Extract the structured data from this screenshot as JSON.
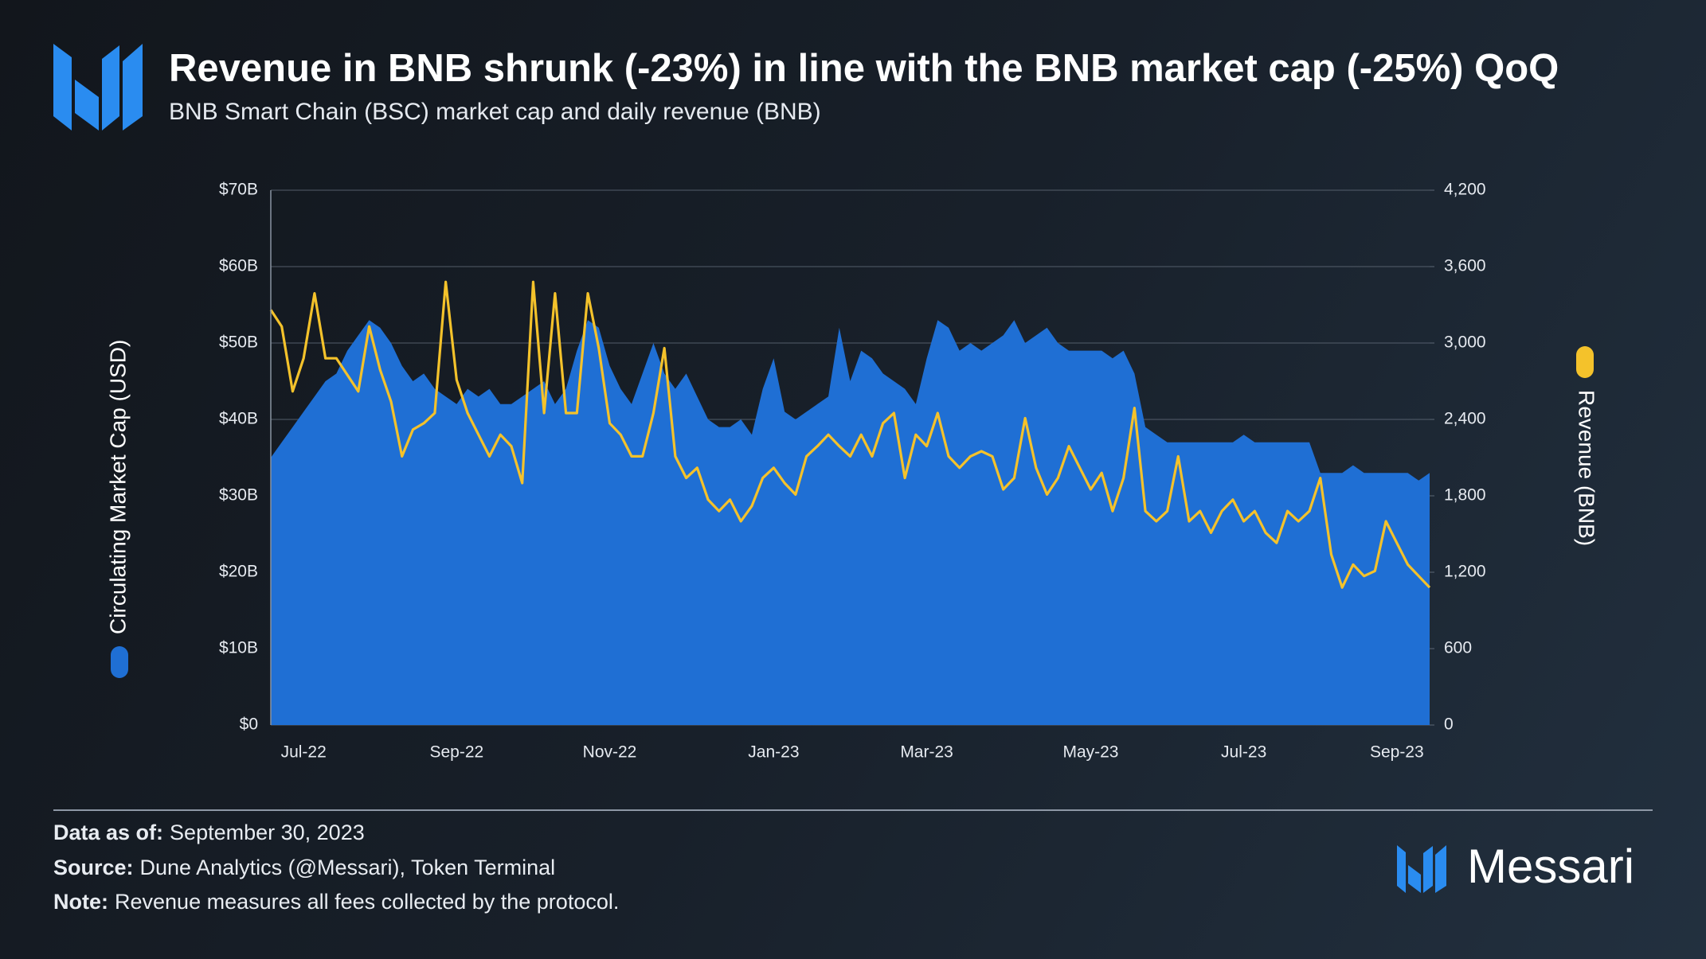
{
  "chart_data": {
    "type": "line",
    "title": "Revenue in BNB shrunk (-23%) in line with the BNB market cap (-25%) QoQ",
    "subtitle": "BNB Smart Chain (BSC) market cap and daily revenue (BNB)",
    "categories": [
      null,
      null,
      null,
      "Jul-22",
      null,
      null,
      null,
      null,
      null,
      null,
      null,
      null,
      null,
      null,
      null,
      null,
      null,
      "Sep-22",
      null,
      null,
      null,
      null,
      null,
      null,
      null,
      null,
      null,
      null,
      null,
      null,
      null,
      "Nov-22",
      null,
      null,
      null,
      null,
      null,
      null,
      null,
      null,
      null,
      null,
      null,
      null,
      null,
      null,
      "Jan-23",
      null,
      null,
      null,
      null,
      null,
      null,
      null,
      null,
      null,
      null,
      null,
      null,
      null,
      "Mar-23",
      null,
      null,
      null,
      null,
      null,
      null,
      null,
      null,
      null,
      null,
      null,
      null,
      null,
      null,
      "May-23",
      null,
      null,
      null,
      null,
      null,
      null,
      null,
      null,
      null,
      null,
      null,
      null,
      null,
      "Jul-23",
      null,
      null,
      null,
      null,
      null,
      null,
      null,
      null,
      null,
      null,
      null,
      null,
      null,
      "Sep-23",
      null,
      null,
      null
    ],
    "series": [
      {
        "name": "Circulating Market Cap (USD)",
        "type": "area",
        "axis": "y",
        "color": "#1f6fd4",
        "values": [
          35,
          37,
          39,
          41,
          43,
          45,
          46,
          49,
          51,
          53,
          52,
          50,
          47,
          45,
          46,
          44,
          43,
          42,
          44,
          43,
          44,
          42,
          42,
          43,
          44,
          45,
          42,
          44,
          49,
          53,
          52,
          47,
          44,
          42,
          46,
          50,
          46,
          44,
          46,
          43,
          40,
          39,
          39,
          40,
          38,
          44,
          48,
          41,
          40,
          41,
          42,
          43,
          52,
          45,
          49,
          48,
          46,
          45,
          44,
          42,
          48,
          53,
          52,
          49,
          50,
          49,
          50,
          51,
          53,
          50,
          51,
          52,
          50,
          49,
          49,
          49,
          49,
          48,
          49,
          46,
          39,
          38,
          37,
          37,
          37,
          37,
          37,
          37,
          37,
          38,
          37,
          37,
          37,
          37,
          37,
          37,
          33,
          33,
          33,
          34,
          33,
          33,
          33,
          33,
          33,
          32,
          33
        ]
      },
      {
        "name": "Revenue (BNB)",
        "type": "line",
        "axis": "y2",
        "color": "#f4c22b",
        "values": [
          3260,
          3130,
          2620,
          2880,
          3390,
          2880,
          2880,
          2750,
          2620,
          3130,
          2790,
          2540,
          2110,
          2320,
          2370,
          2450,
          3480,
          2710,
          2450,
          2280,
          2110,
          2280,
          2190,
          1900,
          3480,
          2450,
          3390,
          2450,
          2450,
          3390,
          2960,
          2370,
          2280,
          2110,
          2110,
          2450,
          2960,
          2110,
          1940,
          2020,
          1770,
          1680,
          1770,
          1600,
          1720,
          1940,
          2020,
          1900,
          1810,
          2110,
          2190,
          2280,
          2190,
          2110,
          2280,
          2110,
          2370,
          2450,
          1940,
          2280,
          2190,
          2450,
          2110,
          2020,
          2110,
          2150,
          2110,
          1850,
          1940,
          2410,
          2020,
          1810,
          1940,
          2190,
          2020,
          1850,
          1980,
          1680,
          1940,
          2490,
          1680,
          1600,
          1680,
          2110,
          1600,
          1680,
          1510,
          1680,
          1770,
          1600,
          1680,
          1510,
          1430,
          1680,
          1600,
          1680,
          1940,
          1340,
          1080,
          1260,
          1170,
          1210,
          1600,
          1430,
          1260,
          1170,
          1080
        ]
      }
    ],
    "ylim": [
      0,
      70
    ],
    "yticks": [
      {
        "value": 0,
        "label": "$0"
      },
      {
        "value": 10,
        "label": "$10B"
      },
      {
        "value": 20,
        "label": "$20B"
      },
      {
        "value": 30,
        "label": "$30B"
      },
      {
        "value": 40,
        "label": "$40B"
      },
      {
        "value": 50,
        "label": "$50B"
      },
      {
        "value": 60,
        "label": "$60B"
      },
      {
        "value": 70,
        "label": "$70B"
      }
    ],
    "y2lim": [
      0,
      4200
    ],
    "y2ticks": [
      0,
      600,
      {
        "value": 1200,
        "label": "1,200"
      },
      {
        "value": 1800,
        "label": "1,800"
      },
      {
        "value": 2400,
        "label": "2,400"
      },
      {
        "value": 3000,
        "label": "3,000"
      },
      {
        "value": 3600,
        "label": "3,600"
      },
      {
        "value": 4200,
        "label": "4,200"
      }
    ],
    "grid": true
  },
  "footer": {
    "data_as_of": {
      "label": "Data as of:",
      "text": "September 30, 2023"
    },
    "source": {
      "label": "Source:",
      "text": "Dune Analytics (@Messari), Token Terminal"
    },
    "note": {
      "label": "Note:",
      "text": "Revenue measures all fees collected by the protocol."
    }
  },
  "brand": "Messari"
}
